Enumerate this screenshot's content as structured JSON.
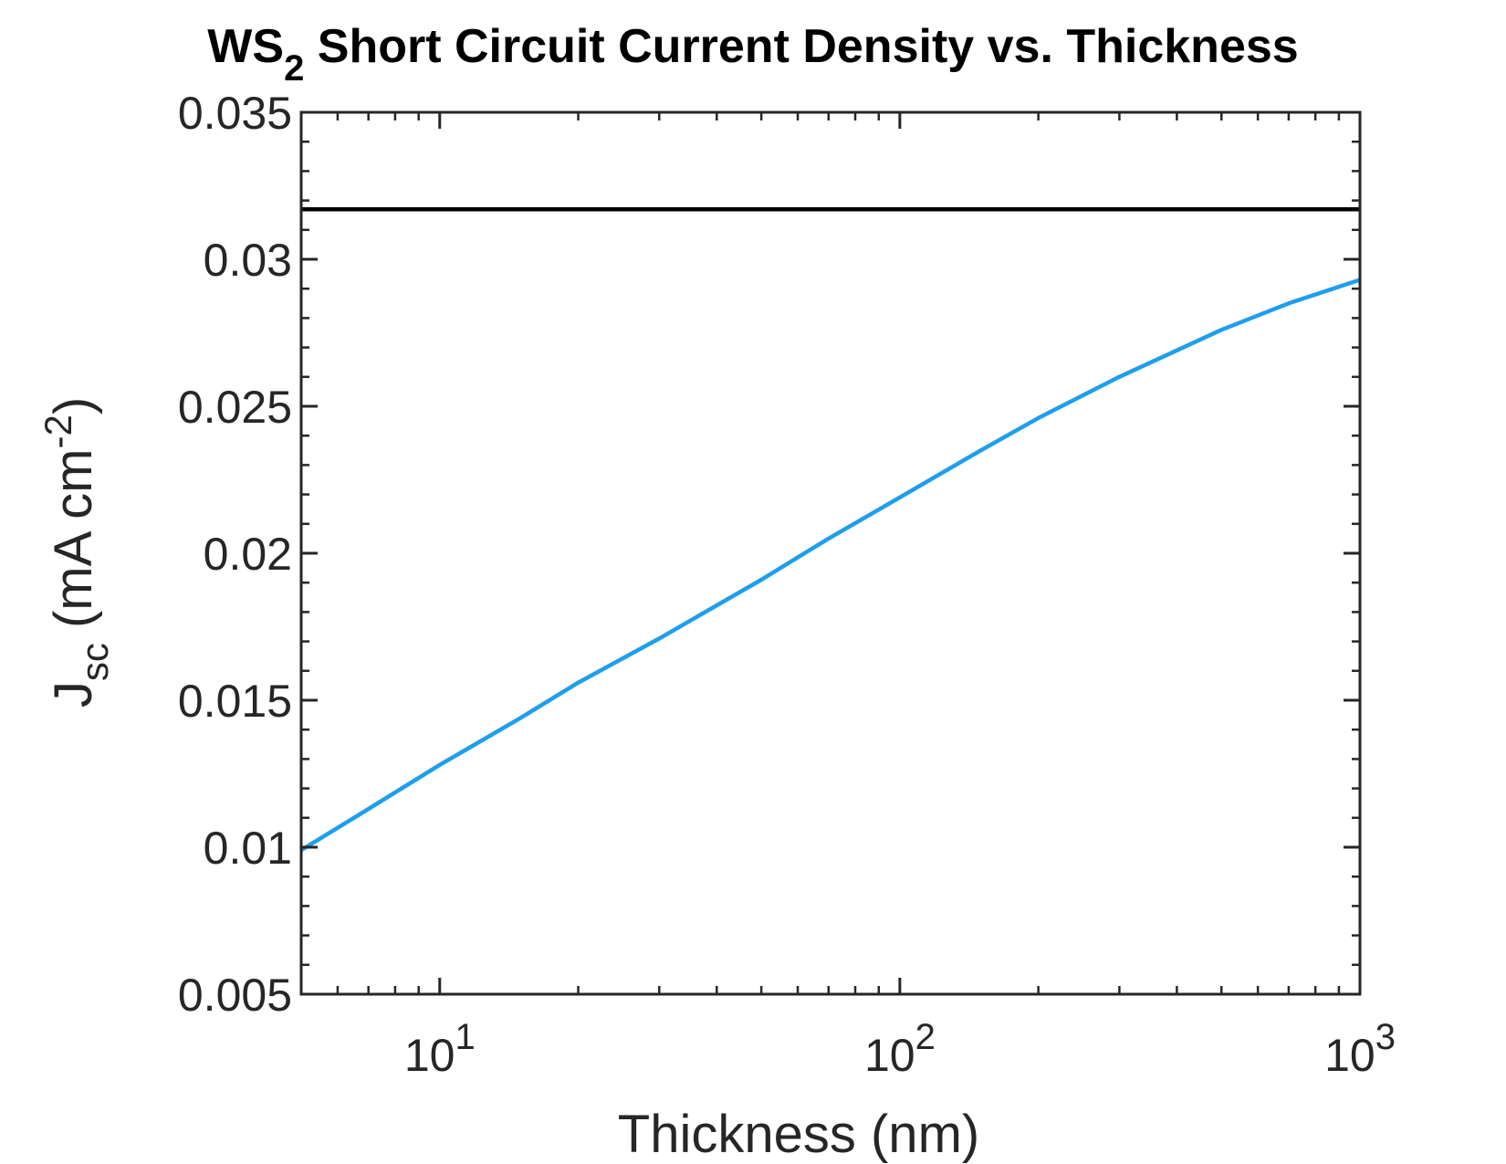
{
  "chart_data": {
    "type": "line",
    "title": {
      "main": "WS",
      "subscript": "2",
      "rest": " Short Circuit Current Density vs. Thickness"
    },
    "xlabel": "Thickness (nm)",
    "ylabel": {
      "main": "J",
      "subscript": "sc",
      "unit_prefix": " (mA cm",
      "unit_superscript": "-2",
      "unit_suffix": ")"
    },
    "x_scale": "log",
    "xlim": [
      5,
      1000
    ],
    "ylim": [
      0.005,
      0.035
    ],
    "x_ticks": [
      {
        "base": "10",
        "exponent": "1",
        "value": 10
      },
      {
        "base": "10",
        "exponent": "2",
        "value": 100
      },
      {
        "base": "10",
        "exponent": "3",
        "value": 1000
      }
    ],
    "y_ticks": [
      {
        "label": "0.005",
        "value": 0.005
      },
      {
        "label": "0.01",
        "value": 0.01
      },
      {
        "label": "0.015",
        "value": 0.015
      },
      {
        "label": "0.02",
        "value": 0.02
      },
      {
        "label": "0.025",
        "value": 0.025
      },
      {
        "label": "0.03",
        "value": 0.03
      },
      {
        "label": "0.035",
        "value": 0.035
      }
    ],
    "grid": false,
    "series": [
      {
        "color": "#1f9eec",
        "x": [
          5,
          7,
          10,
          15,
          20,
          30,
          50,
          70,
          100,
          150,
          200,
          300,
          500,
          700,
          1000
        ],
        "y": [
          0.0099,
          0.0113,
          0.0128,
          0.0144,
          0.0156,
          0.0171,
          0.0191,
          0.0205,
          0.0219,
          0.0235,
          0.0246,
          0.026,
          0.0276,
          0.0285,
          0.0293
        ]
      },
      {
        "color": "#000000",
        "x": [
          5,
          1000
        ],
        "y": [
          0.0317,
          0.0317
        ]
      }
    ]
  }
}
